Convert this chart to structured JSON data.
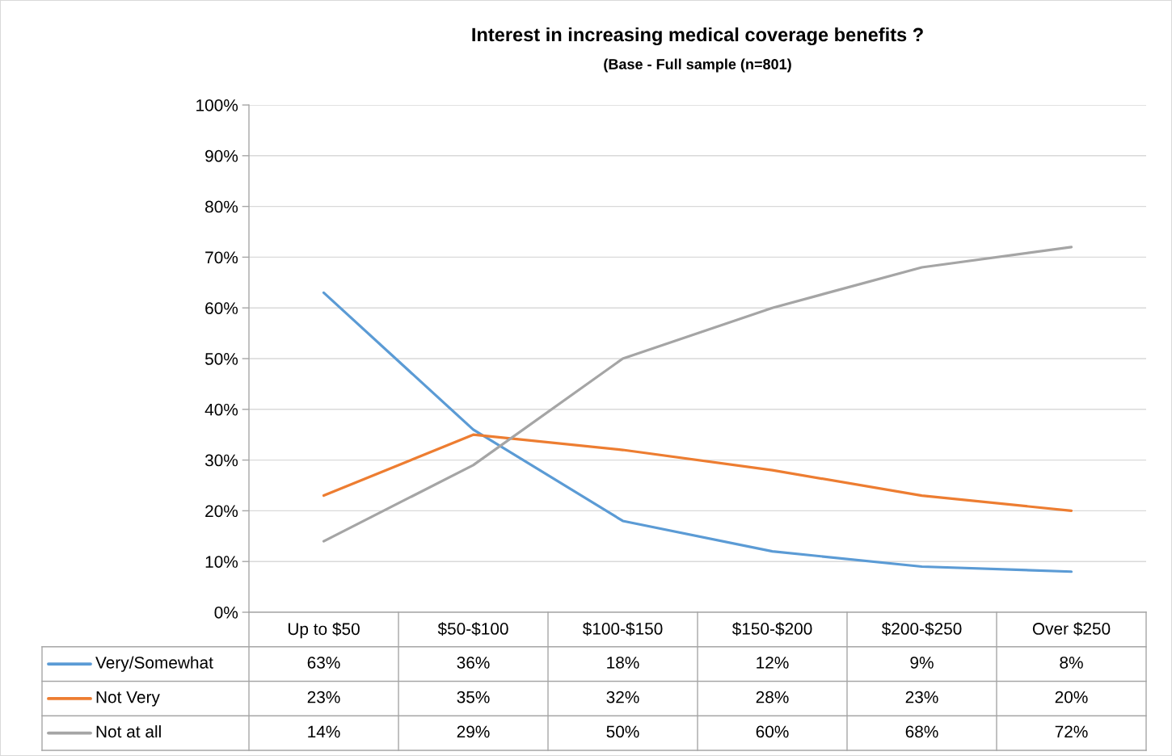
{
  "chart_data": {
    "type": "line",
    "title": "Interest in increasing medical coverage benefits ?",
    "subtitle": "(Base - Full sample (n=801)",
    "categories": [
      "Up to $50",
      "$50-$100",
      "$100-$150",
      "$150-$200",
      "$200-$250",
      "Over $250"
    ],
    "series": [
      {
        "name": "Very/Somewhat",
        "color": "#5b9bd5",
        "values": [
          63,
          36,
          18,
          12,
          9,
          8
        ],
        "value_labels": [
          "63%",
          "36%",
          "18%",
          "12%",
          "9%",
          "8%"
        ]
      },
      {
        "name": "Not Very",
        "color": "#ed7d31",
        "values": [
          23,
          35,
          32,
          28,
          23,
          20
        ],
        "value_labels": [
          "23%",
          "35%",
          "32%",
          "28%",
          "23%",
          "20%"
        ]
      },
      {
        "name": "Not at all",
        "color": "#a5a5a5",
        "values": [
          14,
          29,
          50,
          60,
          68,
          72
        ],
        "value_labels": [
          "14%",
          "29%",
          "50%",
          "60%",
          "68%",
          "72%"
        ]
      }
    ],
    "ylim": [
      0,
      100
    ],
    "yticks": [
      {
        "value": 0,
        "label": "0%"
      },
      {
        "value": 10,
        "label": "10%"
      },
      {
        "value": 20,
        "label": "20%"
      },
      {
        "value": 30,
        "label": "30%"
      },
      {
        "value": 40,
        "label": "40%"
      },
      {
        "value": 50,
        "label": "50%"
      },
      {
        "value": 60,
        "label": "60%"
      },
      {
        "value": 70,
        "label": "70%"
      },
      {
        "value": 80,
        "label": "80%"
      },
      {
        "value": 90,
        "label": "90%"
      },
      {
        "value": 100,
        "label": "100%"
      }
    ],
    "grid": "y",
    "legend": "bottom",
    "marker": "none",
    "line_style": "solid"
  }
}
